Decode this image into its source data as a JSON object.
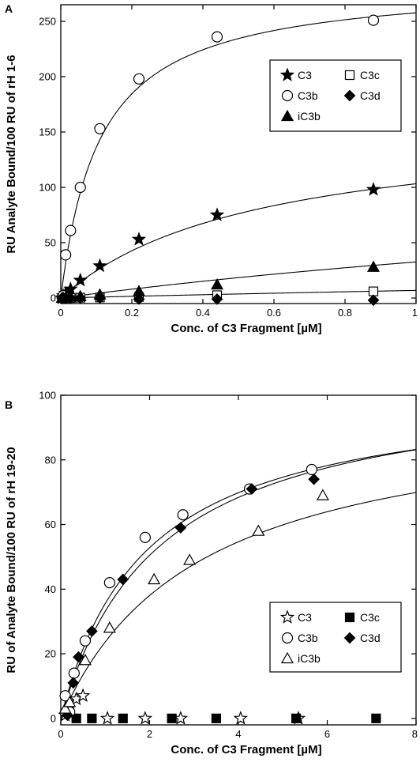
{
  "chart_data": [
    {
      "panel": "A",
      "type": "scatter",
      "xlabel": "Conc. of C3 Fragment [µM]",
      "ylabel": "RU Analyte Bound/100 RU of rH 1-6",
      "xlim": [
        0,
        1
      ],
      "ylim": [
        -5,
        265
      ],
      "xticks": [
        0,
        0.2,
        0.4,
        0.6,
        0.8,
        1
      ],
      "xtick_labels": [
        "0",
        "0.2",
        "0.4",
        "0.6",
        "0.8",
        "1"
      ],
      "yticks": [
        0,
        50,
        100,
        150,
        200,
        250
      ],
      "ytick_labels": [
        "0",
        "50",
        "100",
        "150",
        "200",
        "250"
      ],
      "grid": false,
      "legend": {
        "placement": "top-right",
        "columns": 2
      },
      "series": [
        {
          "name": "C3",
          "marker": "star-filled",
          "x": [
            0.0034,
            0.0069,
            0.0137,
            0.0275,
            0.055,
            0.11,
            0.22,
            0.44,
            0.88
          ],
          "y": [
            0,
            2,
            4,
            8,
            16,
            29,
            53,
            75,
            98
          ],
          "fit": {
            "bmax": 160,
            "kd": 0.55
          }
        },
        {
          "name": "C3c",
          "marker": "square-open",
          "x": [
            0.0034,
            0.0069,
            0.0137,
            0.0275,
            0.055,
            0.11,
            0.22,
            0.44,
            0.88
          ],
          "y": [
            0,
            0,
            0,
            0,
            0.3,
            0.5,
            1,
            2.5,
            6
          ],
          "fit": {
            "bmax": 55,
            "kd": 7
          }
        },
        {
          "name": "C3b",
          "marker": "circle-open",
          "x": [
            0.0069,
            0.0137,
            0.0275,
            0.055,
            0.11,
            0.22,
            0.44,
            0.88
          ],
          "y": [
            2,
            39,
            61,
            100,
            153,
            198,
            236,
            251
          ],
          "fit": {
            "bmax": 286,
            "kd": 0.11
          }
        },
        {
          "name": "C3d",
          "marker": "diamond-filled",
          "x": [
            0.0034,
            0.0069,
            0.0137,
            0.0275,
            0.055,
            0.11,
            0.22,
            0.44,
            0.88
          ],
          "y": [
            0,
            0,
            0,
            0,
            0,
            0,
            -1,
            -1,
            -2
          ],
          "fit": null
        },
        {
          "name": "iC3b",
          "marker": "triangle-filled",
          "x": [
            0.0034,
            0.0069,
            0.0137,
            0.0275,
            0.055,
            0.11,
            0.22,
            0.44,
            0.88
          ],
          "y": [
            0,
            0,
            0.5,
            1,
            1.5,
            3,
            6,
            12,
            28
          ],
          "fit": {
            "bmax": 140,
            "kd": 3.3
          }
        }
      ]
    },
    {
      "panel": "B",
      "type": "scatter",
      "xlabel": "Conc. of C3 Fragment [µM]",
      "ylabel": "RU of Analyte Bound/100 RU of rH 19-20",
      "xlim": [
        0,
        8
      ],
      "ylim": [
        -2,
        100
      ],
      "xticks": [
        0,
        2,
        4,
        6,
        8
      ],
      "xtick_labels": [
        "0",
        "2",
        "4",
        "6",
        "8"
      ],
      "yticks": [
        0,
        20,
        40,
        60,
        80,
        100
      ],
      "ytick_labels": [
        "0",
        "20",
        "40",
        "60",
        "80",
        "100"
      ],
      "grid": false,
      "legend": {
        "placement": "lower-right",
        "columns": 2
      },
      "series": [
        {
          "name": "C3",
          "marker": "star-open",
          "x": [
            0.1,
            0.2,
            0.35,
            0.5,
            1.05,
            1.9,
            2.7,
            4.05,
            5.35
          ],
          "y": [
            1,
            5,
            6,
            7,
            0,
            0,
            0,
            0,
            0
          ],
          "fit": null
        },
        {
          "name": "C3c",
          "marker": "square-filled",
          "x": [
            0.35,
            0.7,
            1.4,
            2.5,
            3.5,
            5.3,
            7.1
          ],
          "y": [
            0,
            0,
            0,
            0,
            0,
            0,
            0
          ],
          "fit": null
        },
        {
          "name": "C3b",
          "marker": "circle-open",
          "x": [
            0.1,
            0.2,
            0.3,
            0.55,
            1.1,
            1.9,
            2.75,
            4.25,
            5.65
          ],
          "y": [
            7,
            2,
            14,
            24,
            42,
            56,
            63,
            71,
            77
          ],
          "fit": {
            "bmax": 103,
            "kd": 1.9
          }
        },
        {
          "name": "C3d",
          "marker": "diamond-filled",
          "x": [
            0.15,
            0.28,
            0.4,
            0.7,
            1.4,
            2.7,
            4.3,
            5.7
          ],
          "y": [
            1,
            11,
            19,
            27,
            43,
            59,
            71,
            74
          ],
          "fit": {
            "bmax": 106,
            "kd": 2.2
          }
        },
        {
          "name": "iC3b",
          "marker": "triangle-open",
          "x": [
            0.1,
            0.2,
            0.55,
            1.1,
            2.1,
            2.9,
            4.45,
            5.9
          ],
          "y": [
            3,
            5,
            18,
            28,
            43,
            49,
            58,
            69
          ],
          "fit": {
            "bmax": 97,
            "kd": 3.1
          }
        }
      ]
    }
  ]
}
